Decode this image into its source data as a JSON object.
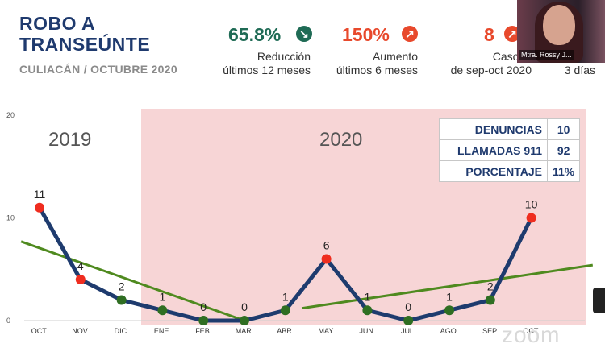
{
  "header": {
    "title_line1": "ROBO A",
    "title_line2": "TRANSEÚNTE",
    "subtitle": "CULIACÁN / OCTUBRE 2020"
  },
  "stats": [
    {
      "value": "65.8%",
      "label_line1": "Reducción",
      "label_line2": "últimos 12 meses",
      "color": "#1f6b55",
      "icon": "arrow-down-right-icon"
    },
    {
      "value": "150%",
      "label_line1": "Aumento",
      "label_line2": "últimos 6 meses",
      "color": "#e8492c",
      "icon": "arrow-up-right-icon"
    },
    {
      "value": "8",
      "label_line1": "Caso m",
      "label_line2": "de sep-oct 2020",
      "color": "#e8492c",
      "icon": "arrow-up-right-icon"
    }
  ],
  "cut_label": "3 días",
  "video": {
    "participant_name": "Mtra. Rossy J..."
  },
  "years": {
    "left": "2019",
    "right": "2020"
  },
  "table": [
    {
      "label": "DENUNCIAS",
      "value": "10"
    },
    {
      "label": "LLAMADAS 911",
      "value": "92"
    },
    {
      "label": "PORCENTAJE",
      "value": "11%"
    }
  ],
  "watermark": "zoom",
  "chart_data": {
    "type": "line",
    "categories": [
      "OCT.",
      "NOV.",
      "DIC.",
      "ENE.",
      "FEB.",
      "MAR.",
      "ABR.",
      "MAY.",
      "JUN.",
      "JUL.",
      "AGO.",
      "SEP.",
      "OCT."
    ],
    "series": [
      {
        "values": [
          11,
          4,
          2,
          1,
          0,
          0,
          1,
          6,
          1,
          0,
          1,
          2,
          10
        ],
        "color": "#1e3b6e"
      }
    ],
    "highlight_indices": [
      0,
      1,
      7,
      12
    ],
    "highlight_color": "#ef2d1f",
    "point_color": "#2f6e22",
    "trend_lines": [
      {
        "color": "#4f8a1f",
        "from": [
          -0.45,
          7.7
        ],
        "to": [
          5.0,
          0.0
        ]
      },
      {
        "color": "#4f8a1f",
        "from": [
          6.4,
          1.2
        ],
        "to": [
          13.5,
          5.4
        ]
      }
    ],
    "y_ticks": [
      0,
      10,
      20
    ],
    "ylim": [
      0,
      20
    ],
    "grid": false,
    "shaded_region_start": "ENE.",
    "shaded_color": "#f7d5d6"
  }
}
